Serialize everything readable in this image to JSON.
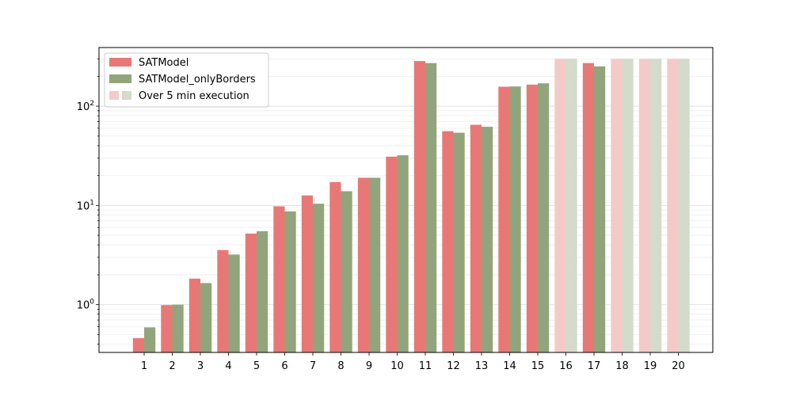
{
  "chart_data": {
    "type": "bar",
    "yscale": "log",
    "ylim": [
      0.33,
      390
    ],
    "y_ticks": [
      {
        "value": 1,
        "label": "10",
        "exp": "0"
      },
      {
        "value": 10,
        "label": "10",
        "exp": "1"
      },
      {
        "value": 100,
        "label": "10",
        "exp": "2"
      }
    ],
    "grid": "y-major-and-minor",
    "legend_position": "upper-left",
    "categories": [
      "1",
      "2",
      "3",
      "4",
      "5",
      "6",
      "7",
      "8",
      "9",
      "10",
      "11",
      "12",
      "13",
      "14",
      "15",
      "16",
      "17",
      "18",
      "19",
      "20"
    ],
    "series": [
      {
        "name": "SATModel",
        "color": "#e87876",
        "values": [
          0.46,
          0.99,
          1.83,
          3.55,
          5.2,
          9.8,
          12.6,
          17.2,
          19.0,
          31.0,
          285,
          56,
          65,
          157,
          165,
          300,
          272,
          300,
          300,
          300
        ]
      },
      {
        "name": "SATModel_onlyBorders",
        "color": "#92a47c",
        "values": [
          0.59,
          1.0,
          1.65,
          3.2,
          5.5,
          8.7,
          10.4,
          13.9,
          19.0,
          32.0,
          272,
          54,
          62,
          158,
          170,
          300,
          252,
          300,
          300,
          300
        ]
      }
    ],
    "timeout_value": 300,
    "timeout_categories": [
      "16",
      "18",
      "19",
      "20"
    ],
    "timeout_colors": [
      "#f4cac9",
      "#d4dbcb"
    ],
    "legend": {
      "items": [
        "SATModel",
        "SATModel_onlyBorders",
        "Over 5 min execution"
      ]
    }
  }
}
